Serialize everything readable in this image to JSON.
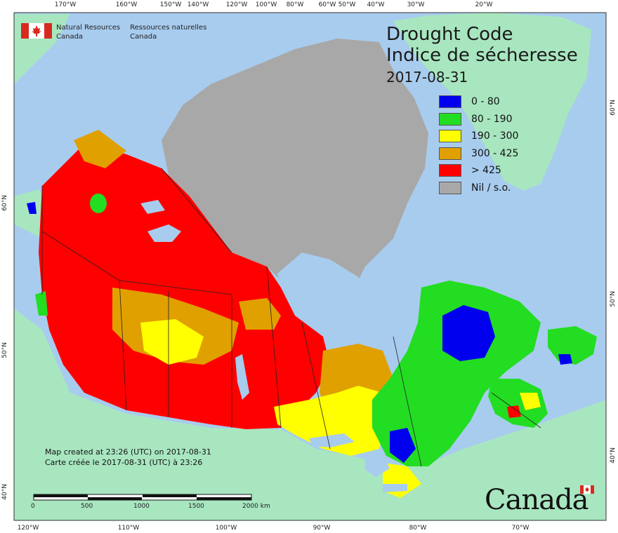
{
  "title": {
    "en": "Drought Code",
    "fr": "Indice de sécheresse",
    "date": "2017-08-31"
  },
  "agency": {
    "en_line1": "Natural Resources",
    "en_line2": "Canada",
    "fr_line1": "Ressources naturelles",
    "fr_line2": "Canada"
  },
  "legend": [
    {
      "label": "0 - 80",
      "color": "#0000ee"
    },
    {
      "label": "80 - 190",
      "color": "#22dd22"
    },
    {
      "label": "190 - 300",
      "color": "#ffff00"
    },
    {
      "label": "300 - 425",
      "color": "#e0a000"
    },
    {
      "label": "> 425",
      "color": "#ff0000"
    },
    {
      "label": "Nil / s.o.",
      "color": "#a8a8a8"
    }
  ],
  "created": {
    "en": "Map created at 23:26 (UTC) on 2017-08-31",
    "fr": "Carte créée le 2017-08-31 (UTC) à 23:26"
  },
  "scale": {
    "labels": [
      "0",
      "500",
      "1000",
      "1500",
      "2000 km"
    ]
  },
  "wordmark": "Canada",
  "ticks": {
    "top": [
      "170°W",
      "160°W",
      "150°W",
      "140°W",
      "120°W",
      "100°W",
      "80°W",
      "60°W",
      "50°W",
      "40°W",
      "30°W",
      "20°W"
    ],
    "bottom": [
      "120°W",
      "110°W",
      "100°W",
      "90°W",
      "80°W",
      "70°W"
    ],
    "left": [
      "60°N",
      "50°N",
      "40°N"
    ],
    "right": [
      "60°N",
      "50°N",
      "40°N"
    ]
  },
  "colors": {
    "ocean": "#a8ccee",
    "land_outside": "#a8e6c0",
    "greenland": "#a8e6c0",
    "nil": "#a8a8a8",
    "border": "#222222"
  }
}
